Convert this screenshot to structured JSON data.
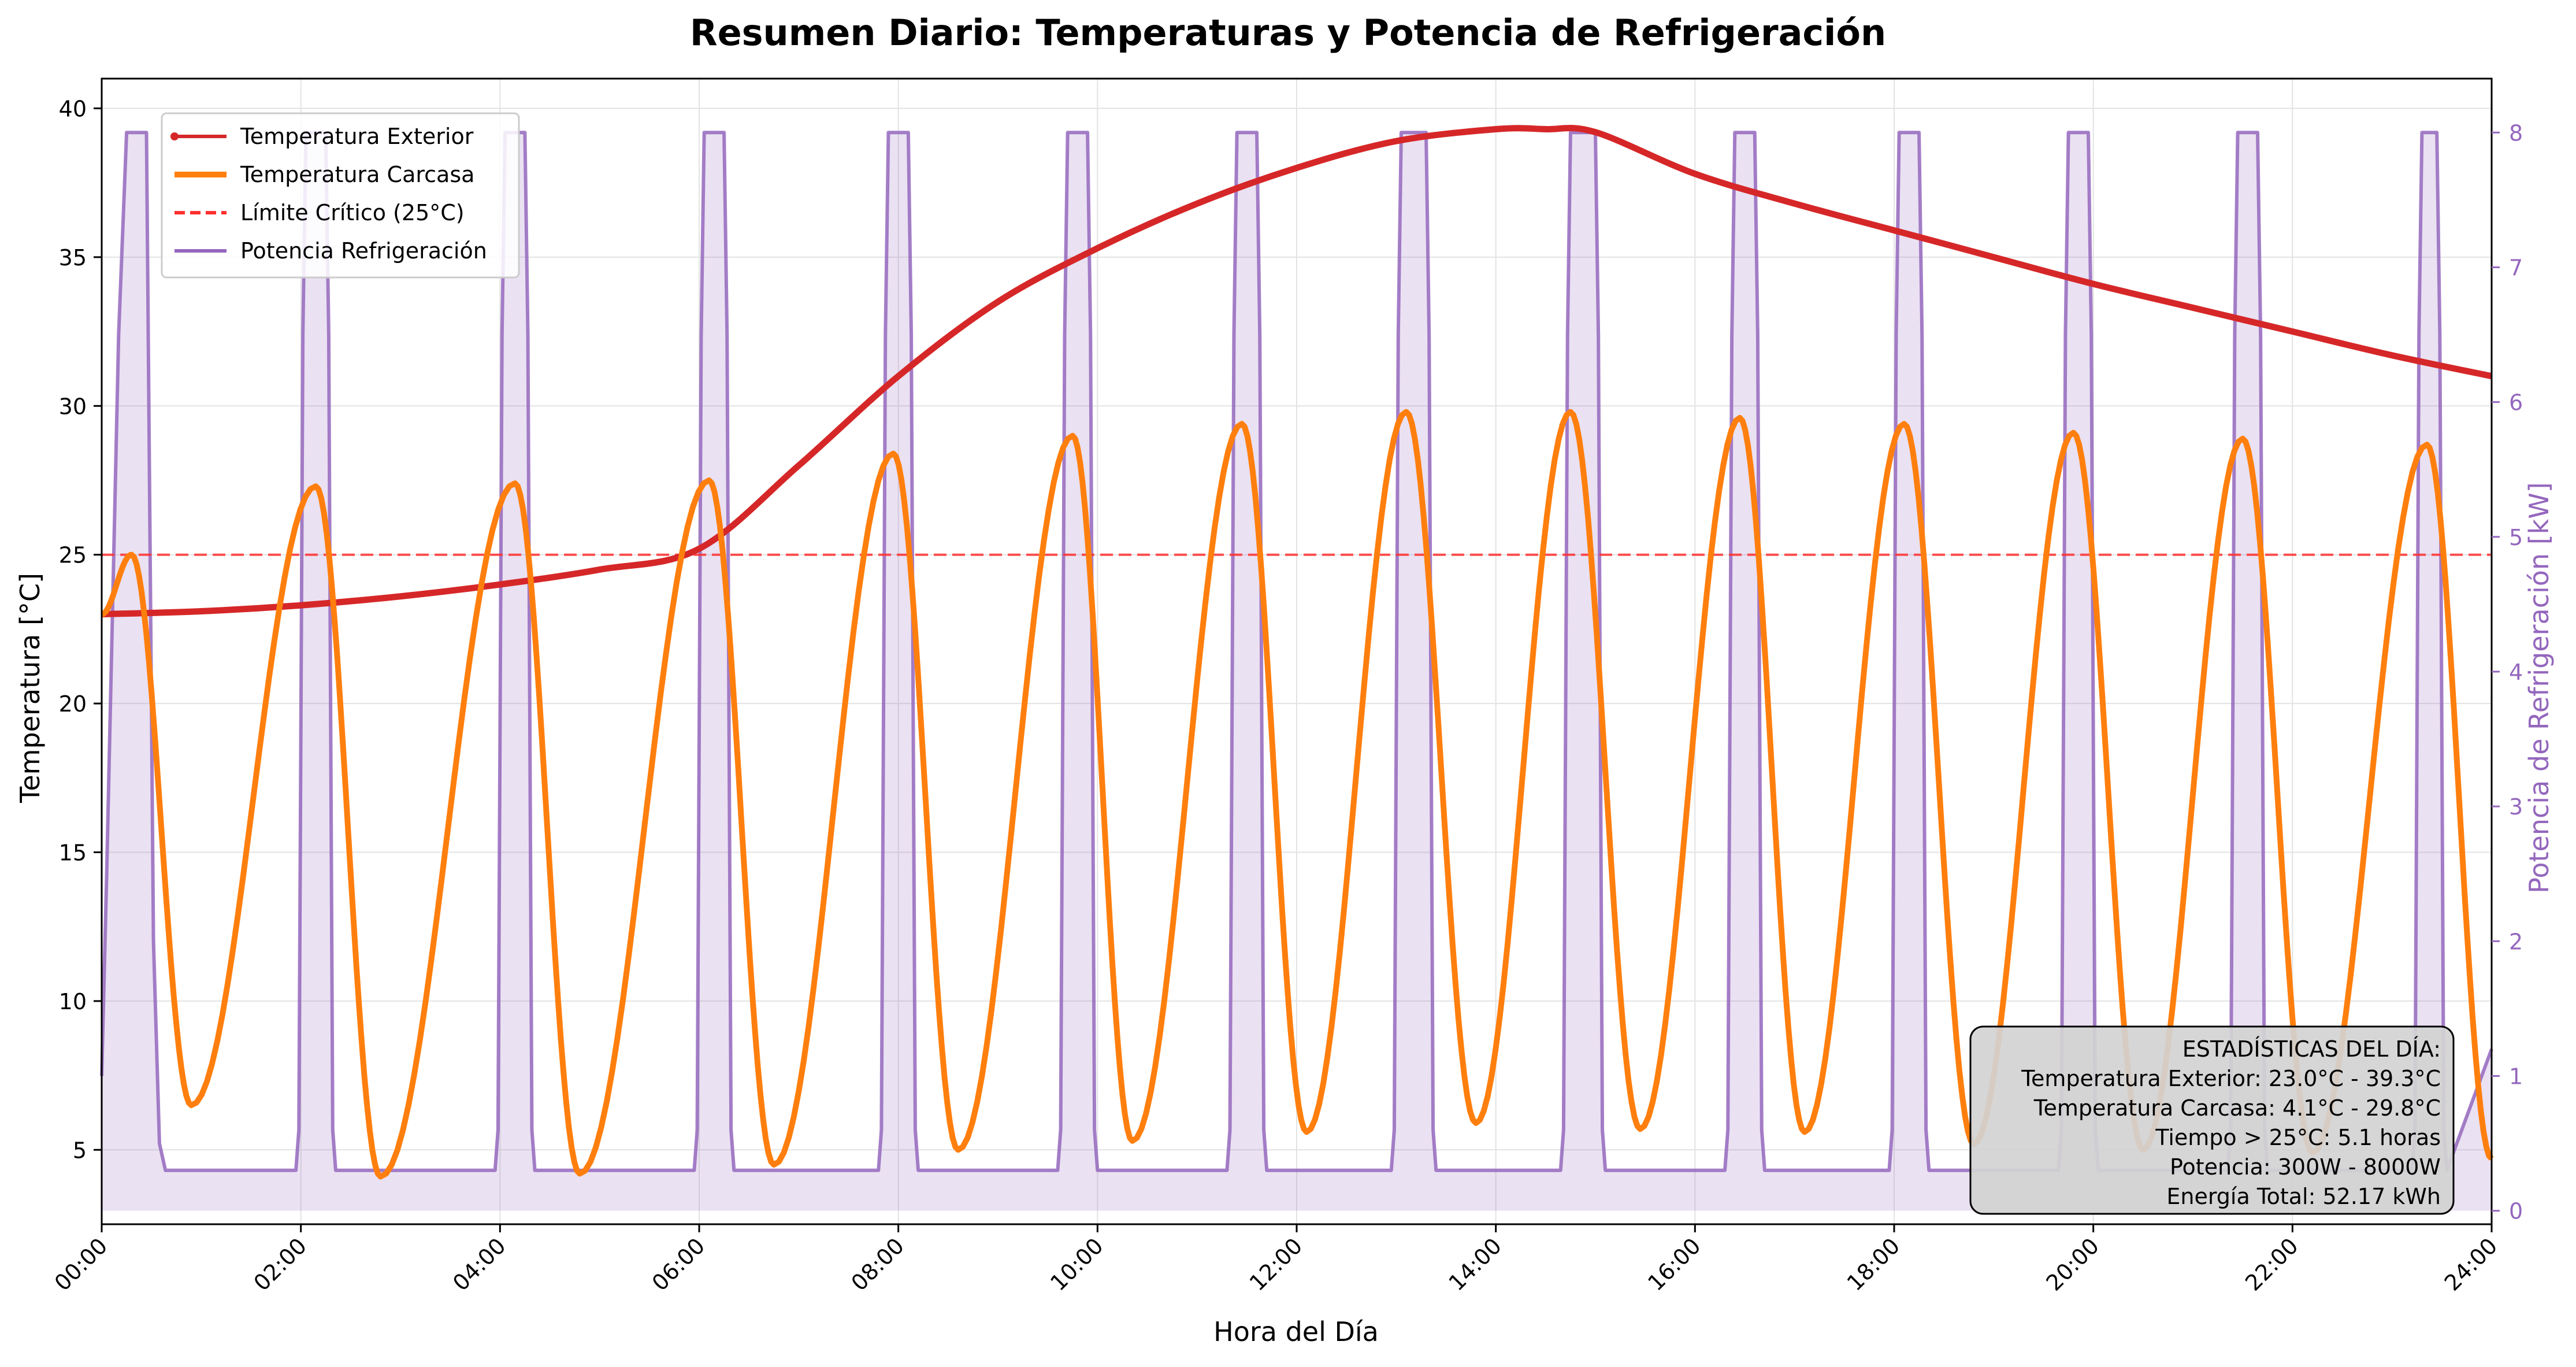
{
  "chart_data": {
    "type": "line",
    "title": "Resumen Diario: Temperaturas y Potencia de Refrigeración",
    "xlabel": "Hora del Día",
    "ylabel": "Temperatura [°C]",
    "ylabel_right": "Potencia de Refrigeración [kW]",
    "x_ticks": [
      "00:00",
      "02:00",
      "04:00",
      "06:00",
      "08:00",
      "10:00",
      "12:00",
      "14:00",
      "16:00",
      "18:00",
      "20:00",
      "22:00",
      "24:00"
    ],
    "xlim": [
      0,
      24
    ],
    "ylim": [
      2.5,
      41
    ],
    "y_ticks": [
      5,
      10,
      15,
      20,
      25,
      30,
      35,
      40
    ],
    "ylim_right": [
      -0.1,
      8.4
    ],
    "y_ticks_right": [
      0,
      1,
      2,
      3,
      4,
      5,
      6,
      7,
      8
    ],
    "grid": true,
    "legend_placement": "top-left",
    "legend": [
      {
        "label": "Temperatura Exterior",
        "color": "#d62728",
        "style": "solid-marker"
      },
      {
        "label": "Temperatura Carcasa",
        "color": "#ff7f0e",
        "style": "solid-thick"
      },
      {
        "label": "Límite Crítico (25°C)",
        "color": "#ff3030",
        "style": "dashed"
      },
      {
        "label": "Potencia Refrigeración",
        "color": "#9467bd",
        "style": "solid"
      }
    ],
    "critical_limit": 25,
    "series": [
      {
        "name": "Temperatura Exterior",
        "axis": "left",
        "color": "#d62728",
        "x": [
          0,
          1,
          2,
          3,
          4,
          5,
          6,
          7,
          8,
          9,
          10,
          11,
          12,
          13,
          14,
          14.5,
          15,
          16,
          17,
          18,
          19,
          20,
          21,
          22,
          23,
          24
        ],
        "values": [
          23.0,
          23.1,
          23.3,
          23.6,
          24.0,
          24.5,
          25.2,
          28.0,
          31.0,
          33.5,
          35.3,
          36.8,
          38.0,
          38.9,
          39.3,
          39.3,
          39.2,
          37.8,
          36.8,
          35.9,
          35.0,
          34.1,
          33.3,
          32.5,
          31.7,
          31.0
        ]
      },
      {
        "name": "Temperatura Carcasa",
        "axis": "left",
        "color": "#ff7f0e",
        "peaks": [
          [
            0.3,
            25.0
          ],
          [
            2.15,
            27.3
          ],
          [
            4.15,
            27.4
          ],
          [
            6.1,
            27.5
          ],
          [
            7.95,
            28.4
          ],
          [
            9.75,
            29.0
          ],
          [
            11.45,
            29.4
          ],
          [
            13.1,
            29.8
          ],
          [
            14.75,
            29.8
          ],
          [
            16.45,
            29.6
          ],
          [
            18.1,
            29.4
          ],
          [
            19.8,
            29.1
          ],
          [
            21.5,
            28.9
          ],
          [
            23.35,
            28.7
          ]
        ],
        "troughs": [
          [
            0.9,
            6.5
          ],
          [
            2.8,
            4.1
          ],
          [
            4.8,
            4.2
          ],
          [
            6.75,
            4.5
          ],
          [
            8.6,
            5.0
          ],
          [
            10.35,
            5.3
          ],
          [
            12.1,
            5.6
          ],
          [
            13.8,
            5.9
          ],
          [
            15.45,
            5.7
          ],
          [
            17.1,
            5.6
          ],
          [
            18.8,
            5.2
          ],
          [
            20.5,
            5.0
          ],
          [
            22.2,
            4.9
          ]
        ],
        "start": [
          0,
          23.0
        ],
        "end": [
          24,
          4.7
        ]
      },
      {
        "name": "Potencia Refrigeración",
        "axis": "right",
        "color": "#9467bd",
        "low_kW": 0.3,
        "high_kW": 8.0,
        "on_intervals": [
          [
            0.25,
            0.45
          ],
          [
            2.05,
            2.25
          ],
          [
            4.05,
            4.25
          ],
          [
            6.05,
            6.25
          ],
          [
            7.9,
            8.1
          ],
          [
            9.7,
            9.9
          ],
          [
            11.4,
            11.6
          ],
          [
            13.05,
            13.3
          ],
          [
            14.75,
            15.0
          ],
          [
            16.4,
            16.6
          ],
          [
            18.05,
            18.25
          ],
          [
            19.75,
            19.95
          ],
          [
            21.45,
            21.65
          ],
          [
            23.3,
            23.45
          ]
        ]
      }
    ],
    "stats_box": {
      "lines": [
        "ESTADÍSTICAS DEL DÍA:",
        "Temperatura Exterior: 23.0°C - 39.3°C",
        "Temperatura Carcasa: 4.1°C - 29.8°C",
        "Tiempo > 25°C: 5.1 horas",
        "Potencia: 300W - 8000W",
        "Energía Total: 52.17 kWh"
      ]
    }
  }
}
